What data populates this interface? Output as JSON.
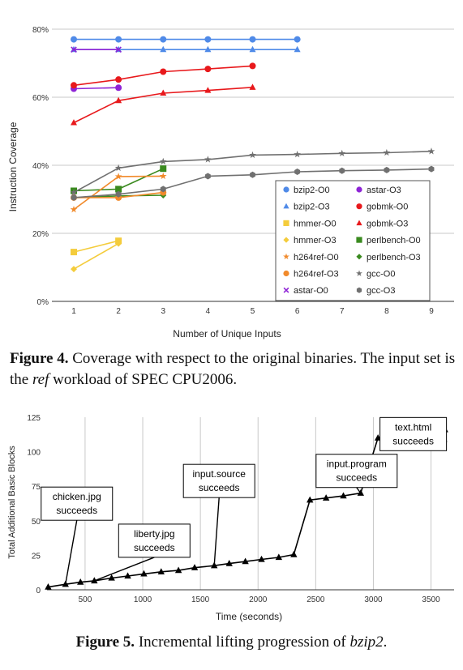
{
  "fig4": {
    "caption_label": "Figure 4.",
    "caption_pre": " Coverage with respect to the original binaries. The input set is the ",
    "caption_em": "ref",
    "caption_post": " workload of SPEC CPU2006."
  },
  "fig5": {
    "caption_label": "Figure 5.",
    "caption_pre": " Incremental lifting progression of ",
    "caption_em": "bzip2",
    "caption_post": "."
  },
  "chart_data": [
    {
      "type": "line",
      "title": "",
      "xlabel": "Number of Unique Inputs",
      "ylabel": "Instruction Coverage",
      "x_ticks": [
        "1",
        "2",
        "3",
        "4",
        "5",
        "6",
        "7",
        "8",
        "9"
      ],
      "y_ticks": [
        "0%",
        "20%",
        "40%",
        "60%",
        "80%"
      ],
      "xlim": [
        1,
        9
      ],
      "ylim": [
        0,
        80
      ],
      "grid": "horizontal",
      "legend_position": "bottom-right",
      "series": [
        {
          "name": "bzip2-O0",
          "color": "#4f8ae8",
          "marker": "circle",
          "x": [
            1,
            2,
            3,
            4,
            5,
            6
          ],
          "y": [
            77,
            77,
            77,
            77,
            77,
            77
          ]
        },
        {
          "name": "astar-O3",
          "color": "#8e24d6",
          "marker": "circle",
          "x": [
            1,
            2
          ],
          "y": [
            62.5,
            62.8
          ]
        },
        {
          "name": "bzip2-O3",
          "color": "#4f8ae8",
          "marker": "triangle",
          "x": [
            1,
            2,
            3,
            4,
            5,
            6
          ],
          "y": [
            74,
            74,
            74,
            74,
            74,
            74
          ]
        },
        {
          "name": "gobmk-O0",
          "color": "#e8191c",
          "marker": "circle",
          "x": [
            1,
            2,
            3,
            4,
            5
          ],
          "y": [
            63.5,
            65.2,
            67.5,
            68.3,
            69.2
          ]
        },
        {
          "name": "hmmer-O0",
          "color": "#f4cc3c",
          "marker": "square",
          "x": [
            1,
            2
          ],
          "y": [
            14.5,
            17.8
          ]
        },
        {
          "name": "gobmk-O3",
          "color": "#e8191c",
          "marker": "triangle",
          "x": [
            1,
            2,
            3,
            4,
            5
          ],
          "y": [
            52.5,
            59,
            61.2,
            62,
            62.9
          ]
        },
        {
          "name": "hmmer-O3",
          "color": "#f4cc3c",
          "marker": "diamond",
          "x": [
            1,
            2
          ],
          "y": [
            9.5,
            17
          ]
        },
        {
          "name": "perlbench-O0",
          "color": "#3a8a1f",
          "marker": "square",
          "x": [
            1,
            2,
            3
          ],
          "y": [
            32.5,
            33,
            39
          ]
        },
        {
          "name": "h264ref-O0",
          "color": "#f18a2b",
          "marker": "star",
          "x": [
            1,
            2,
            3
          ],
          "y": [
            27,
            36.7,
            36.8
          ]
        },
        {
          "name": "perlbench-O3",
          "color": "#3a8a1f",
          "marker": "diamond",
          "x": [
            1,
            2,
            3
          ],
          "y": [
            30.5,
            31,
            31.2
          ]
        },
        {
          "name": "h264ref-O3",
          "color": "#f18a2b",
          "marker": "circle",
          "x": [
            1,
            2,
            3
          ],
          "y": [
            30.5,
            30.5,
            32
          ]
        },
        {
          "name": "gcc-O0",
          "color": "#707070",
          "marker": "star",
          "x": [
            1,
            2,
            3,
            4,
            5,
            6,
            7,
            8,
            9
          ],
          "y": [
            32,
            39.2,
            41.1,
            41.7,
            43,
            43.2,
            43.5,
            43.7,
            44.1
          ]
        },
        {
          "name": "astar-O0",
          "color": "#8e24d6",
          "marker": "x",
          "x": [
            1,
            2
          ],
          "y": [
            74,
            74
          ]
        },
        {
          "name": "gcc-O3",
          "color": "#707070",
          "marker": "hexagon",
          "x": [
            1,
            2,
            3,
            4,
            5,
            6,
            7,
            8,
            9
          ],
          "y": [
            30.5,
            31.5,
            33,
            36.8,
            37.2,
            38.1,
            38.4,
            38.6,
            38.9
          ]
        }
      ]
    },
    {
      "type": "line",
      "title": "",
      "xlabel": "Time (seconds)",
      "ylabel": "Total Additional Basic Blocks",
      "x_ticks": [
        "500",
        "1000",
        "1500",
        "2000",
        "2500",
        "3000",
        "3500"
      ],
      "y_ticks": [
        "0",
        "25",
        "50",
        "75",
        "100",
        "125"
      ],
      "xlim": [
        170,
        3700
      ],
      "ylim": [
        0,
        125
      ],
      "grid": "vertical",
      "series": [
        {
          "name": "",
          "color": "#000000",
          "marker": "triangle",
          "x": [
            180,
            330,
            460,
            580,
            730,
            870,
            1010,
            1160,
            1310,
            1450,
            1620,
            1750,
            1890,
            2030,
            2180,
            2310,
            2450,
            2590,
            2740,
            2890,
            3040,
            3180,
            3320,
            3460,
            3620
          ],
          "y": [
            2,
            4,
            5.5,
            6.5,
            8.5,
            10,
            11.5,
            13,
            14,
            16,
            17.5,
            19,
            20.5,
            22,
            23.5,
            25.5,
            65,
            66.5,
            68,
            70,
            110,
            112,
            113,
            115,
            116
          ]
        }
      ],
      "annotations": [
        {
          "lines": [
            "chicken.jpg",
            "succeeds"
          ],
          "x": 330,
          "y": 4
        },
        {
          "lines": [
            "liberty.jpg",
            "succeeds"
          ],
          "x": 580,
          "y": 6.5
        },
        {
          "lines": [
            "input.source",
            "succeeds"
          ],
          "x": 1620,
          "y": 17.5
        },
        {
          "lines": [
            "input.program",
            "succeeds"
          ],
          "x": 2890,
          "y": 70
        },
        {
          "lines": [
            "text.html",
            "succeeds"
          ],
          "x": 3620,
          "y": 116
        }
      ]
    }
  ]
}
